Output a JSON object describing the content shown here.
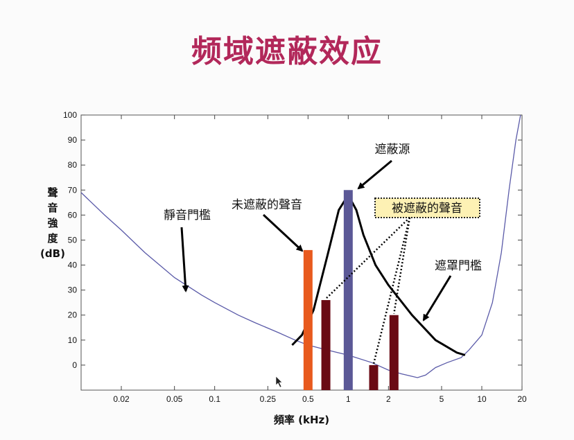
{
  "title": "频域遮蔽效应",
  "chart_data": {
    "type": "line",
    "xlabel": "頻率 (kHz)",
    "ylabel": [
      "聲",
      "音",
      "強",
      "度",
      "(dB)"
    ],
    "xscale": "log",
    "xlim": [
      0.01,
      20
    ],
    "ylim": [
      -10,
      100
    ],
    "xticks": [
      {
        "v": 0.02,
        "label": "0.02"
      },
      {
        "v": 0.05,
        "label": "0.05"
      },
      {
        "v": 0.1,
        "label": "0.1"
      },
      {
        "v": 0.25,
        "label": "0.25"
      },
      {
        "v": 0.5,
        "label": "0.5"
      },
      {
        "v": 1,
        "label": "1"
      },
      {
        "v": 2,
        "label": "2"
      },
      {
        "v": 5,
        "label": "5"
      },
      {
        "v": 10,
        "label": "10"
      },
      {
        "v": 20,
        "label": "20"
      }
    ],
    "yticks": [
      0,
      10,
      20,
      30,
      40,
      50,
      60,
      70,
      80,
      90,
      100
    ],
    "quiet_threshold": {
      "x": [
        0.01,
        0.015,
        0.02,
        0.03,
        0.05,
        0.08,
        0.1,
        0.15,
        0.2,
        0.3,
        0.4,
        0.5,
        0.7,
        1.0,
        1.5,
        2.0,
        2.5,
        3.0,
        3.3,
        3.8,
        4.5,
        5.5,
        7.0,
        8.0,
        10.0,
        12.0,
        14.0,
        16.0,
        18.0,
        19.5
      ],
      "y": [
        69,
        60,
        54,
        45,
        35,
        28,
        25,
        20,
        17,
        13,
        10,
        8,
        6,
        4,
        1,
        -2,
        -3.5,
        -4.5,
        -5,
        -4,
        -1,
        1,
        3,
        6,
        12,
        25,
        45,
        70,
        90,
        100
      ]
    },
    "masking_threshold": {
      "x": [
        0.38,
        0.45,
        0.55,
        0.7,
        0.85,
        1.0,
        1.15,
        1.3,
        1.6,
        2.0,
        3.0,
        4.5,
        6.5,
        7.5
      ],
      "y": [
        8,
        12,
        22,
        44,
        62,
        68,
        62,
        52,
        40,
        32,
        20,
        10,
        5,
        4
      ]
    },
    "bars": [
      {
        "x": 0.5,
        "value": 46,
        "color": "#e85a1e",
        "role": "unmasked"
      },
      {
        "x": 0.68,
        "value": 26,
        "color": "#6a0a14",
        "role": "masked"
      },
      {
        "x": 1.0,
        "value": 70,
        "color": "#5b5896",
        "role": "masker"
      },
      {
        "x": 1.55,
        "value": 0,
        "color": "#6a0a14",
        "role": "masked"
      },
      {
        "x": 2.2,
        "value": 20,
        "color": "#6a0a14",
        "role": "masked"
      }
    ],
    "annotations": {
      "quiet": "靜音門檻",
      "unmasked": "未遮蔽的聲音",
      "masker": "遮蔽源",
      "masked": "被遮蔽的聲音",
      "mask_threshold": "遮罩門檻"
    },
    "colors": {
      "quiet_curve": "#5a5aa8",
      "masking_curve": "#000000",
      "masked_box": "#fdf1b4"
    }
  }
}
